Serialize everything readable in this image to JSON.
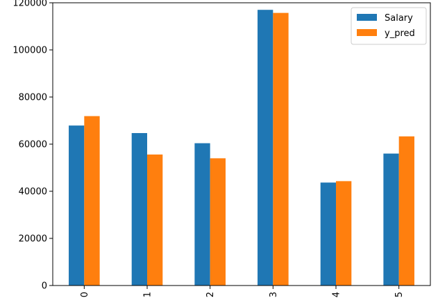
{
  "chart_data": {
    "type": "bar",
    "categories": [
      "0",
      "1",
      "2",
      "3",
      "4",
      "5"
    ],
    "series": [
      {
        "name": "Salary",
        "color": "#1f77b4",
        "values": [
          67900,
          64700,
          60400,
          117000,
          43700,
          56000
        ]
      },
      {
        "name": "y_pred",
        "color": "#ff7f0e",
        "values": [
          71900,
          55600,
          54000,
          115700,
          44300,
          63300
        ]
      }
    ],
    "y_ticks": [
      "0",
      "20000",
      "40000",
      "60000",
      "80000",
      "100000",
      "120000"
    ],
    "ylim": [
      0,
      120000
    ],
    "legend_position": "top-right",
    "grid": false,
    "title": "",
    "xlabel": "",
    "ylabel": ""
  }
}
